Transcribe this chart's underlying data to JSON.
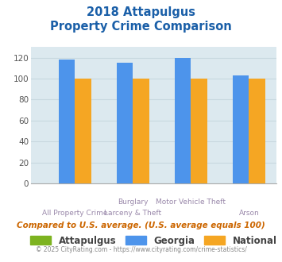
{
  "title_line1": "2018 Attapulgus",
  "title_line2": "Property Crime Comparison",
  "cat_labels_row1": [
    "",
    "Burglary",
    "Motor Vehicle Theft",
    ""
  ],
  "cat_labels_row2": [
    "All Property Crime",
    "Larceny & Theft",
    "",
    "Arson"
  ],
  "attapulgus": [
    0,
    0,
    0,
    0
  ],
  "georgia": [
    118,
    115,
    120,
    103
  ],
  "national": [
    100,
    100,
    100,
    100
  ],
  "ylim": [
    0,
    130
  ],
  "yticks": [
    0,
    20,
    40,
    60,
    80,
    100,
    120
  ],
  "color_attapulgus": "#7db320",
  "color_georgia": "#4d94eb",
  "color_national": "#f5a623",
  "background_color": "#dce9ef",
  "grid_color": "#c8d8df",
  "title_color": "#1a5fa8",
  "label_color": "#9988aa",
  "footnote_color": "#cc6600",
  "copyright_color": "#888888",
  "copyright_link_color": "#4488cc",
  "footnote": "Compared to U.S. average. (U.S. average equals 100)",
  "copyright_text": "© 2025 CityRating.com - ",
  "copyright_link": "https://www.cityrating.com/crime-statistics/",
  "bar_width": 0.28
}
